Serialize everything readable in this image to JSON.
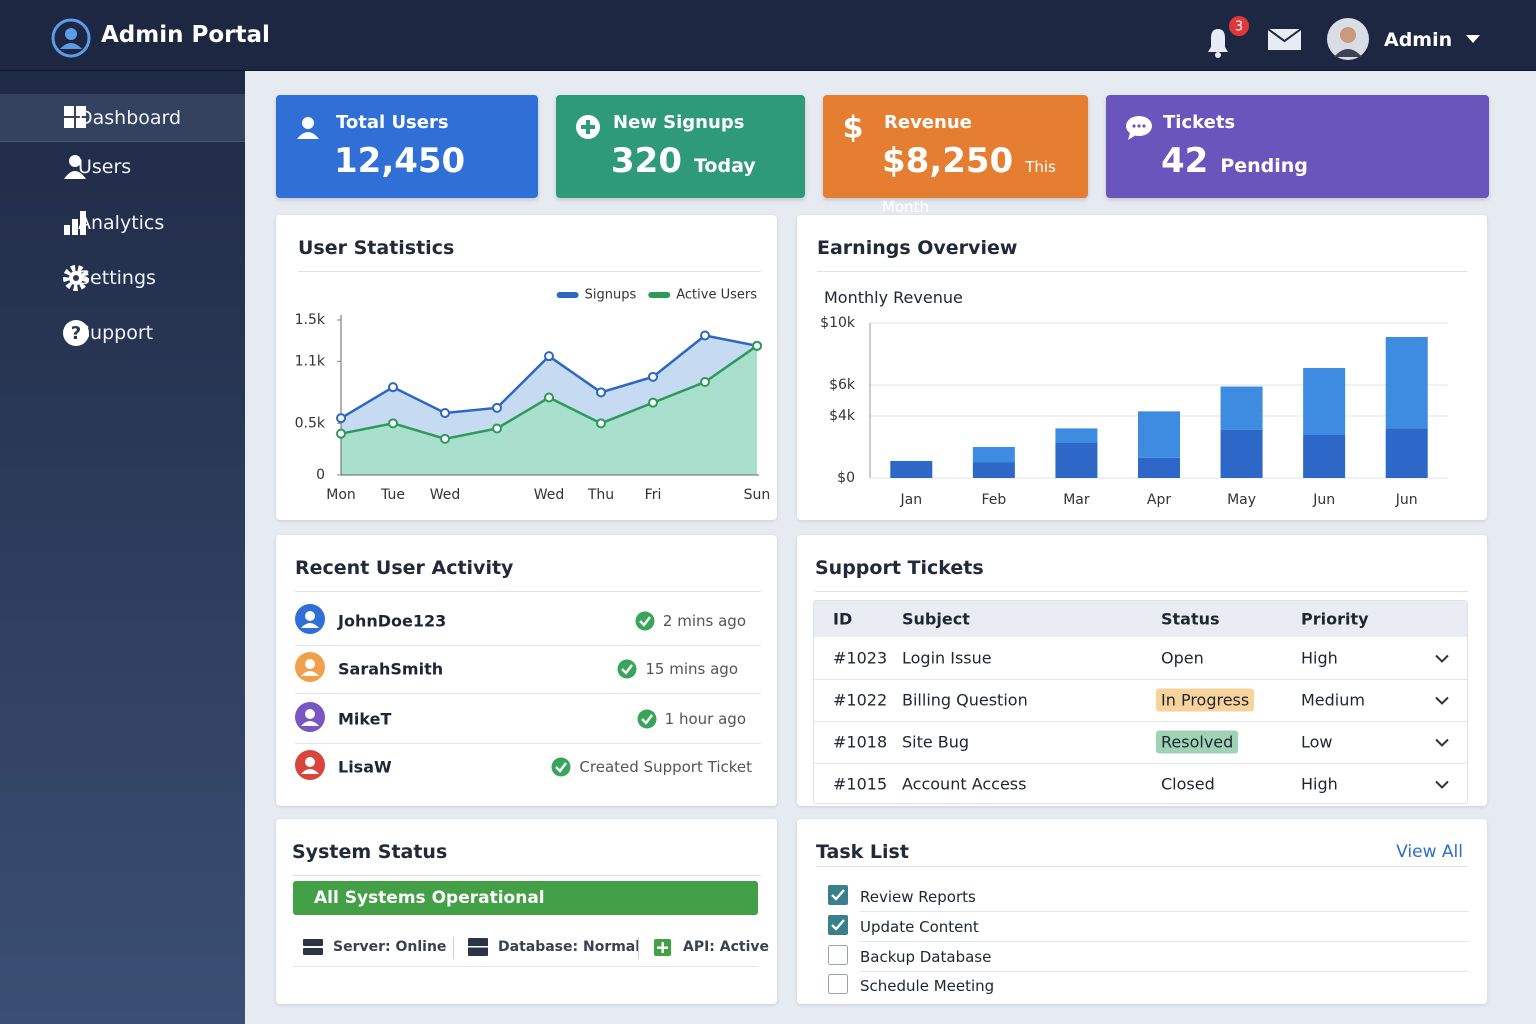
{
  "header": {
    "title": "Admin Portal",
    "notification_count": 3,
    "user": "Admin"
  },
  "sidebar": {
    "items": [
      "Dashboard",
      "Users",
      "Analytics",
      "Settings",
      "Support"
    ],
    "active": 0
  },
  "stats": [
    {
      "label": "Total Users",
      "value": "12,450",
      "color": "#2f6fd6"
    },
    {
      "label": "New Signups",
      "value": "320",
      "note": "Today",
      "color": "#2e9a78"
    },
    {
      "label": "Revenue",
      "value": "$8,250",
      "note": "This Month",
      "color": "#e67e32"
    },
    {
      "label": "Tickets",
      "value": "42",
      "note": "Pending",
      "color": "#6a55bd"
    }
  ],
  "chart_data": [
    {
      "type": "line",
      "title": "User Statistics",
      "categories": [
        "Mon",
        "Tue",
        "Wed",
        null,
        "Wed",
        "Thu",
        "Fri",
        null,
        "Sun"
      ],
      "series": [
        {
          "name": "Signups",
          "color": "#2c68c2",
          "area_color": "#bcd4ef",
          "values": [
            550,
            850,
            600,
            650,
            1150,
            800,
            950,
            1350,
            1250
          ]
        },
        {
          "name": "Active Users",
          "color": "#2e9a5a",
          "area_color": "#a3dfc7",
          "values": [
            400,
            500,
            350,
            450,
            750,
            500,
            700,
            900,
            1250
          ]
        }
      ],
      "ylim": [
        0,
        1500
      ],
      "yticks": [
        0,
        {
          "value": 500,
          "label": "0.5k"
        },
        {
          "value": 1100,
          "label": "1.1k"
        },
        {
          "value": 1500,
          "label": "1.5k"
        }
      ],
      "legend": "top-right",
      "area": true
    },
    {
      "type": "bar",
      "title": "Earnings Overview",
      "subtitle": "Monthly Revenue",
      "categories": [
        "Jan",
        "Feb",
        "Mar",
        "Apr",
        "May",
        "Jun",
        "Jun"
      ],
      "stacked": true,
      "series": [
        {
          "color": "#2d68c8",
          "values": [
            1100,
            1000,
            2300,
            1300,
            3100,
            2800,
            3200
          ]
        },
        {
          "color": "#3e8be2",
          "values": [
            0,
            1000,
            900,
            3000,
            2800,
            4300,
            5900
          ]
        }
      ],
      "ylim": [
        0,
        10000
      ],
      "yticks": [
        {
          "value": 0,
          "label": "$0"
        },
        {
          "value": 4000,
          "label": "$4k"
        },
        {
          "value": 6000,
          "label": "$6k"
        },
        {
          "value": 10000,
          "label": "$10k"
        }
      ],
      "grid": true
    }
  ],
  "activity": {
    "title": "Recent User Activity",
    "items": [
      {
        "user": "JohnDoe123",
        "time": "2 mins ago",
        "color": "#2f6fd6"
      },
      {
        "user": "SarahSmith",
        "time": "15 mins ago",
        "color": "#f0a04b"
      },
      {
        "user": "MikeT",
        "time": "1 hour ago",
        "color": "#7a55c4"
      },
      {
        "user": "LisaW",
        "time": "Created Support Ticket",
        "color": "#d9453d"
      }
    ]
  },
  "tickets": {
    "title": "Support Tickets",
    "columns": [
      "ID",
      "Subject",
      "Status",
      "Priority"
    ],
    "rows": [
      {
        "id": "#1023",
        "subject": "Login Issue",
        "status": "Open",
        "priority": "High"
      },
      {
        "id": "#1022",
        "subject": "Billing Question",
        "status": "In Progress",
        "priority": "Medium",
        "status_color": "#f8d49c"
      },
      {
        "id": "#1018",
        "subject": "Site Bug",
        "status": "Resolved",
        "priority": "Low",
        "status_color": "#9fd3b4"
      },
      {
        "id": "#1015",
        "subject": "Account Access",
        "status": "Closed",
        "priority": "High"
      }
    ]
  },
  "system": {
    "title": "System Status",
    "banner": "All Systems Operational",
    "items": [
      "Server: Online",
      "Database: Normal",
      "API: Active"
    ]
  },
  "tasks": {
    "title": "Task List",
    "link": "View All",
    "items": [
      {
        "label": "Review Reports",
        "done": true
      },
      {
        "label": "Update Content",
        "done": true
      },
      {
        "label": "Backup Database",
        "done": false
      },
      {
        "label": "Schedule Meeting",
        "done": false
      }
    ]
  }
}
